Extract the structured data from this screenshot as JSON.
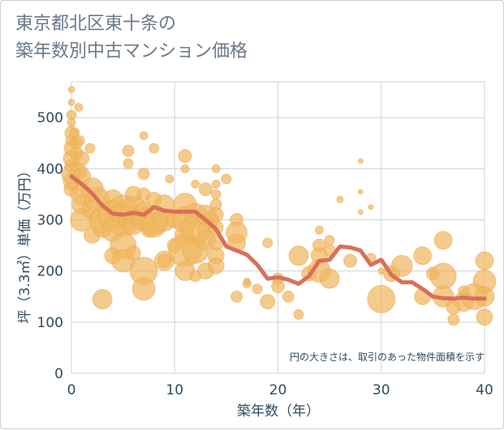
{
  "title_line1": "東京都北区東十条の",
  "title_line2": "築年数別中古マンション価格",
  "chart_data": {
    "type": "scatter",
    "title": "東京都北区東十条の築年数別中古マンション価格",
    "xlabel": "築年数（年）",
    "ylabel": "坪（3.3㎡）単価（万円）",
    "xlim": [
      0,
      40
    ],
    "ylim": [
      0,
      570
    ],
    "xticks": [
      0,
      10,
      20,
      30,
      40
    ],
    "yticks": [
      0,
      100,
      200,
      300,
      400,
      500
    ],
    "grid": true,
    "note": "円の大きさは、取引のあった物件面積を示す",
    "colors": {
      "bubble": "#f0b75f",
      "line": "#d9705a",
      "grid": "#cdd3d9",
      "text": "#2f4b5e"
    },
    "series": [
      {
        "kind": "bubbles",
        "points": [
          [
            0,
            555,
            4
          ],
          [
            0,
            530,
            4
          ],
          [
            0,
            505,
            6
          ],
          [
            0,
            490,
            5
          ],
          [
            0,
            470,
            8
          ],
          [
            0,
            455,
            7
          ],
          [
            0,
            440,
            9
          ],
          [
            0,
            420,
            10
          ],
          [
            0,
            405,
            8
          ],
          [
            0,
            390,
            12
          ],
          [
            0,
            375,
            10
          ],
          [
            0,
            360,
            9
          ],
          [
            0.3,
            470,
            6
          ],
          [
            0.5,
            450,
            7
          ],
          [
            0.5,
            430,
            8
          ],
          [
            0.7,
            520,
            5
          ],
          [
            0.7,
            395,
            10
          ],
          [
            0.8,
            455,
            6
          ],
          [
            1,
            420,
            9
          ],
          [
            1,
            385,
            11
          ],
          [
            1,
            350,
            13
          ],
          [
            1,
            330,
            12
          ],
          [
            1,
            300,
            14
          ],
          [
            1.8,
            440,
            6
          ],
          [
            2,
            360,
            14
          ],
          [
            2,
            320,
            12
          ],
          [
            2,
            270,
            10
          ],
          [
            2.5,
            340,
            15
          ],
          [
            3,
            300,
            16
          ],
          [
            3,
            285,
            12
          ],
          [
            3,
            145,
            12
          ],
          [
            4,
            340,
            12
          ],
          [
            4,
            310,
            18
          ],
          [
            4,
            280,
            14
          ],
          [
            4,
            230,
            10
          ],
          [
            5,
            320,
            18
          ],
          [
            5,
            300,
            20
          ],
          [
            5,
            250,
            16
          ],
          [
            5,
            220,
            14
          ],
          [
            5.5,
            435,
            7
          ],
          [
            5.5,
            410,
            6
          ],
          [
            5.5,
            300,
            12
          ],
          [
            6,
            350,
            10
          ],
          [
            6,
            320,
            16
          ],
          [
            6,
            290,
            12
          ],
          [
            6,
            235,
            9
          ],
          [
            7,
            465,
            5
          ],
          [
            7,
            390,
            7
          ],
          [
            7,
            350,
            8
          ],
          [
            7,
            320,
            10
          ],
          [
            7,
            300,
            14
          ],
          [
            7,
            200,
            17
          ],
          [
            7,
            165,
            14
          ],
          [
            7.5,
            280,
            9
          ],
          [
            8,
            440,
            6
          ],
          [
            8,
            300,
            18
          ],
          [
            8,
            290,
            15
          ],
          [
            8,
            340,
            9
          ],
          [
            9,
            330,
            12
          ],
          [
            9,
            300,
            14
          ],
          [
            9,
            220,
            12
          ],
          [
            9,
            220,
            8
          ],
          [
            9.5,
            380,
            5
          ],
          [
            10,
            300,
            10
          ],
          [
            10,
            250,
            9
          ],
          [
            11,
            425,
            8
          ],
          [
            11,
            400,
            5
          ],
          [
            11,
            330,
            14
          ],
          [
            11,
            300,
            16
          ],
          [
            11,
            270,
            12
          ],
          [
            11,
            240,
            20
          ],
          [
            11,
            200,
            12
          ],
          [
            12,
            370,
            5
          ],
          [
            12,
            310,
            14
          ],
          [
            12,
            280,
            18
          ],
          [
            12,
            240,
            16
          ],
          [
            12,
            190,
            7
          ],
          [
            13,
            360,
            8
          ],
          [
            13,
            310,
            12
          ],
          [
            13,
            280,
            10
          ],
          [
            13,
            260,
            12
          ],
          [
            13,
            200,
            10
          ],
          [
            13.5,
            300,
            10
          ],
          [
            14,
            400,
            5
          ],
          [
            14,
            370,
            5
          ],
          [
            14,
            350,
            6
          ],
          [
            14,
            330,
            7
          ],
          [
            14,
            310,
            9
          ],
          [
            14,
            285,
            9
          ],
          [
            14,
            255,
            9
          ],
          [
            14,
            230,
            10
          ],
          [
            14,
            210,
            10
          ],
          [
            15,
            380,
            6
          ],
          [
            16,
            300,
            8
          ],
          [
            16,
            275,
            13
          ],
          [
            16,
            255,
            11
          ],
          [
            16,
            150,
            7
          ],
          [
            17,
            175,
            5
          ],
          [
            17,
            180,
            4
          ],
          [
            18,
            165,
            6
          ],
          [
            19,
            255,
            6
          ],
          [
            19,
            140,
            9
          ],
          [
            20,
            185,
            7
          ],
          [
            20,
            170,
            8
          ],
          [
            21,
            150,
            7
          ],
          [
            22,
            230,
            12
          ],
          [
            22,
            115,
            6
          ],
          [
            23,
            195,
            9
          ],
          [
            24,
            280,
            5
          ],
          [
            24,
            250,
            8
          ],
          [
            24,
            230,
            10
          ],
          [
            24,
            200,
            14
          ],
          [
            25,
            260,
            6
          ],
          [
            25,
            185,
            12
          ],
          [
            25,
            240,
            7
          ],
          [
            26,
            340,
            4
          ],
          [
            27,
            220,
            8
          ],
          [
            28,
            415,
            3
          ],
          [
            28,
            355,
            3
          ],
          [
            28,
            315,
            3
          ],
          [
            29,
            325,
            3
          ],
          [
            29,
            225,
            6
          ],
          [
            30,
            200,
            4
          ],
          [
            30,
            145,
            17
          ],
          [
            31,
            195,
            10
          ],
          [
            32,
            210,
            13
          ],
          [
            34,
            230,
            11
          ],
          [
            34,
            150,
            10
          ],
          [
            35,
            195,
            8
          ],
          [
            36,
            260,
            11
          ],
          [
            36,
            190,
            16
          ],
          [
            36,
            150,
            13
          ],
          [
            37,
            130,
            9
          ],
          [
            37,
            105,
            7
          ],
          [
            38,
            160,
            7
          ],
          [
            38,
            140,
            12
          ],
          [
            39,
            150,
            16
          ],
          [
            40,
            220,
            11
          ],
          [
            40,
            180,
            14
          ],
          [
            40,
            150,
            12
          ],
          [
            40,
            110,
            10
          ]
        ]
      },
      {
        "kind": "line",
        "x": [
          0,
          1,
          2,
          3,
          4,
          5,
          6,
          7,
          8,
          9,
          10,
          11,
          12,
          13,
          14,
          15,
          16,
          17,
          18,
          19,
          20,
          21,
          22,
          23,
          24,
          25,
          26,
          27,
          28,
          29,
          30,
          31,
          32,
          33,
          34,
          35,
          36,
          37,
          38,
          39,
          40
        ],
        "y": [
          385,
          370,
          352,
          328,
          312,
          310,
          314,
          310,
          325,
          318,
          316,
          316,
          316,
          300,
          282,
          248,
          240,
          232,
          212,
          185,
          188,
          183,
          175,
          190,
          220,
          222,
          248,
          246,
          240,
          212,
          222,
          192,
          178,
          178,
          165,
          150,
          147,
          146,
          148,
          146,
          146
        ]
      }
    ]
  }
}
